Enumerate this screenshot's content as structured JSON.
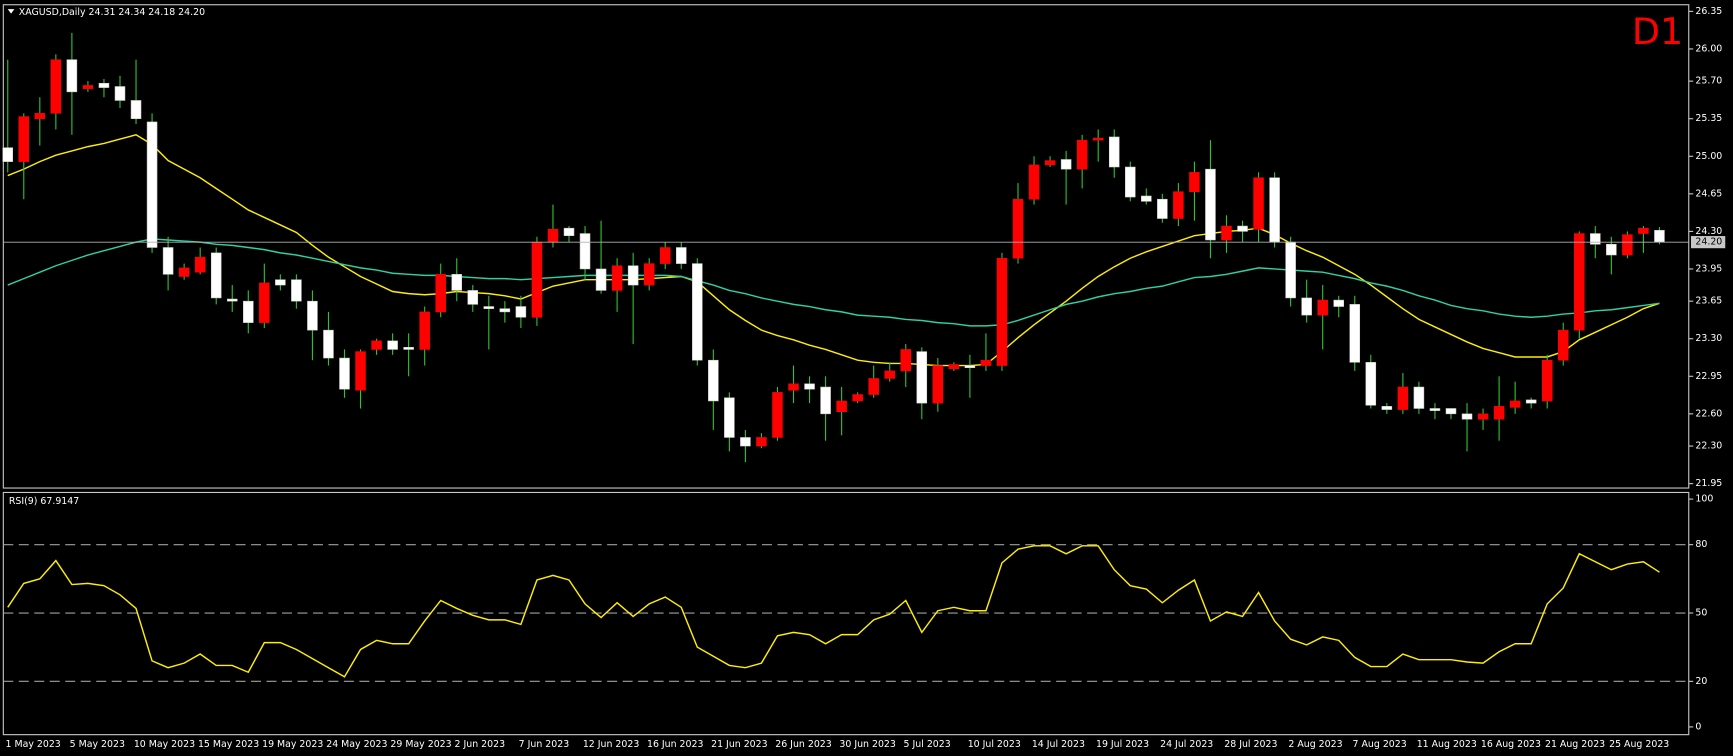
{
  "chart_data": [
    {
      "type": "candlestick",
      "title": "XAGUSD,Daily  24.31 24.34 24.18 24.20",
      "timeframe_label": "D1",
      "up_color": "#ff0000",
      "down_color": "#ffffff",
      "wick_color": "#2ec62e",
      "title_color": "#ffffff",
      "timeframe_color": "#ff0000",
      "ylim": [
        21.95,
        26.35
      ],
      "yticks": [
        26.35,
        {
          "value": 26.0,
          "label": "26.00"
        },
        {
          "value": 25.7,
          "label": "25.70"
        },
        25.35,
        {
          "value": 25.0,
          "label": "25.00"
        },
        24.65,
        {
          "value": 24.3,
          "label": "24.30"
        },
        23.95,
        23.65,
        {
          "value": 23.3,
          "label": "23.30"
        },
        22.95,
        {
          "value": 22.6,
          "label": "22.60"
        },
        {
          "value": 22.3,
          "label": "22.30"
        },
        21.95
      ],
      "current_price": {
        "value": 24.2,
        "label": "24.20"
      },
      "open": [
        25.08,
        24.95,
        25.35,
        25.4,
        25.9,
        25.63,
        25.68,
        25.65,
        25.52,
        25.32,
        24.15,
        23.88,
        23.92,
        24.1,
        23.67,
        23.65,
        23.45,
        23.85,
        23.85,
        23.65,
        23.38,
        23.12,
        22.82,
        23.2,
        23.28,
        23.22,
        23.2,
        23.55,
        23.9,
        23.75,
        23.6,
        23.58,
        23.6,
        23.5,
        24.2,
        24.33,
        24.28,
        23.95,
        23.75,
        23.98,
        23.8,
        24.0,
        24.15,
        24.0,
        23.1,
        22.75,
        22.38,
        22.3,
        22.38,
        22.82,
        22.88,
        22.85,
        22.62,
        22.72,
        22.78,
        22.93,
        23.0,
        23.18,
        22.7,
        23.02,
        23.05,
        23.05,
        23.05,
        24.05,
        24.6,
        24.92,
        24.97,
        24.88,
        25.15,
        25.18,
        24.9,
        24.63,
        24.6,
        24.42,
        24.67,
        24.88,
        24.22,
        24.35,
        24.32,
        24.8,
        24.2,
        23.68,
        23.52,
        23.66,
        23.62,
        23.08,
        22.67,
        22.64,
        22.85,
        22.65,
        22.65,
        22.6,
        22.55,
        22.55,
        22.66,
        22.73,
        22.72,
        23.1,
        23.38,
        24.28,
        24.18,
        24.08,
        24.28,
        24.31
      ],
      "high": [
        25.9,
        25.4,
        25.55,
        25.95,
        26.15,
        25.7,
        25.72,
        25.75,
        25.9,
        25.4,
        24.25,
        24.0,
        24.15,
        24.15,
        23.8,
        23.75,
        24.0,
        23.9,
        23.9,
        23.75,
        23.55,
        23.2,
        23.2,
        23.3,
        23.35,
        23.35,
        23.6,
        24.0,
        24.05,
        23.8,
        23.7,
        23.65,
        23.7,
        24.25,
        24.55,
        24.35,
        24.35,
        24.4,
        24.05,
        24.1,
        24.05,
        24.2,
        24.2,
        24.05,
        23.2,
        22.8,
        22.45,
        22.42,
        22.85,
        23.05,
        22.95,
        22.95,
        22.85,
        22.8,
        23.05,
        23.08,
        23.25,
        23.22,
        23.12,
        23.08,
        23.15,
        23.35,
        24.1,
        24.75,
        25.0,
        25.0,
        25.05,
        25.2,
        25.25,
        25.25,
        24.95,
        24.7,
        24.65,
        24.75,
        24.95,
        25.15,
        24.45,
        24.4,
        24.85,
        24.85,
        24.25,
        23.85,
        23.8,
        23.7,
        23.7,
        23.15,
        22.7,
        22.98,
        22.9,
        22.7,
        22.65,
        22.7,
        22.65,
        22.95,
        22.9,
        22.75,
        23.15,
        23.45,
        24.3,
        24.35,
        24.25,
        24.3,
        24.35,
        24.34
      ],
      "low": [
        24.85,
        24.6,
        25.1,
        25.25,
        25.2,
        25.6,
        25.55,
        25.45,
        25.3,
        24.1,
        23.75,
        23.85,
        23.9,
        23.62,
        23.55,
        23.35,
        23.4,
        23.75,
        23.58,
        23.1,
        23.05,
        22.75,
        22.65,
        23.15,
        23.15,
        22.95,
        23.05,
        23.5,
        23.65,
        23.55,
        23.2,
        23.45,
        23.4,
        23.42,
        24.15,
        24.2,
        23.85,
        23.72,
        23.55,
        23.25,
        23.75,
        23.95,
        23.95,
        23.05,
        22.45,
        22.25,
        22.15,
        22.28,
        22.35,
        22.7,
        22.7,
        22.35,
        22.4,
        22.7,
        22.75,
        22.9,
        22.85,
        22.55,
        22.62,
        23.0,
        22.75,
        23.0,
        23.0,
        24.0,
        24.55,
        24.9,
        24.55,
        24.7,
        24.95,
        24.8,
        24.58,
        24.55,
        24.38,
        24.35,
        24.4,
        24.05,
        24.1,
        24.2,
        24.2,
        24.15,
        23.6,
        23.45,
        23.2,
        23.5,
        23.0,
        22.65,
        22.6,
        22.6,
        22.6,
        22.55,
        22.55,
        22.25,
        22.45,
        22.35,
        22.6,
        22.65,
        22.65,
        23.05,
        23.3,
        24.05,
        23.9,
        24.05,
        24.1,
        24.18
      ],
      "close": [
        24.95,
        25.37,
        25.4,
        25.9,
        25.6,
        25.66,
        25.64,
        25.52,
        25.35,
        24.15,
        23.9,
        23.96,
        24.06,
        23.68,
        23.65,
        23.45,
        23.82,
        23.8,
        23.65,
        23.38,
        23.12,
        22.83,
        23.18,
        23.28,
        23.2,
        23.2,
        23.55,
        23.9,
        23.75,
        23.62,
        23.58,
        23.55,
        23.5,
        24.2,
        24.32,
        24.26,
        23.95,
        23.75,
        23.98,
        23.8,
        24.0,
        24.15,
        24.0,
        23.1,
        22.72,
        22.38,
        22.3,
        22.38,
        22.8,
        22.88,
        22.83,
        22.6,
        22.72,
        22.78,
        22.93,
        23.0,
        23.2,
        22.7,
        23.05,
        23.06,
        23.03,
        23.1,
        24.05,
        24.6,
        24.92,
        24.96,
        24.88,
        25.15,
        25.17,
        24.9,
        24.62,
        24.58,
        24.42,
        24.67,
        24.85,
        24.22,
        24.35,
        24.3,
        24.8,
        24.2,
        23.68,
        23.52,
        23.66,
        23.6,
        23.08,
        22.68,
        22.64,
        22.85,
        22.65,
        22.63,
        22.6,
        22.55,
        22.6,
        22.67,
        22.72,
        22.7,
        23.1,
        23.38,
        24.28,
        24.18,
        24.08,
        24.27,
        24.33,
        24.2
      ],
      "ma_lines": [
        {
          "color": "#ffee00",
          "values": [
            24.82,
            24.88,
            24.95,
            25.01,
            25.05,
            25.09,
            25.12,
            25.16,
            25.2,
            25.11,
            24.96,
            24.88,
            24.8,
            24.7,
            24.6,
            24.5,
            24.43,
            24.36,
            24.29,
            24.17,
            24.06,
            23.97,
            23.88,
            23.81,
            23.74,
            23.72,
            23.71,
            23.72,
            23.74,
            23.73,
            23.72,
            23.7,
            23.67,
            23.73,
            23.79,
            23.82,
            23.85,
            23.85,
            23.85,
            23.85,
            23.86,
            23.87,
            23.88,
            23.83,
            23.7,
            23.57,
            23.47,
            23.38,
            23.33,
            23.29,
            23.24,
            23.2,
            23.15,
            23.1,
            23.08,
            23.07,
            23.07,
            23.06,
            23.05,
            23.05,
            23.05,
            23.06,
            23.18,
            23.31,
            23.43,
            23.54,
            23.65,
            23.77,
            23.88,
            23.97,
            24.05,
            24.11,
            24.16,
            24.21,
            24.26,
            24.28,
            24.3,
            24.31,
            24.33,
            24.27,
            24.19,
            24.12,
            24.06,
            23.98,
            23.9,
            23.8,
            23.69,
            23.58,
            23.48,
            23.41,
            23.34,
            23.27,
            23.21,
            23.17,
            23.13,
            23.13,
            23.13,
            23.18,
            23.29,
            23.36,
            23.43,
            23.5,
            23.58,
            23.63
          ]
        },
        {
          "color": "#30d0a0",
          "values": [
            23.8,
            23.86,
            23.92,
            23.98,
            24.03,
            24.08,
            24.12,
            24.16,
            24.2,
            24.23,
            24.22,
            24.21,
            24.2,
            24.18,
            24.17,
            24.15,
            24.13,
            24.1,
            24.08,
            24.05,
            24.02,
            23.99,
            23.96,
            23.94,
            23.91,
            23.9,
            23.89,
            23.89,
            23.88,
            23.87,
            23.86,
            23.86,
            23.85,
            23.86,
            23.87,
            23.88,
            23.89,
            23.89,
            23.89,
            23.89,
            23.89,
            23.89,
            23.88,
            23.84,
            23.8,
            23.75,
            23.72,
            23.68,
            23.65,
            23.62,
            23.6,
            23.57,
            23.55,
            23.52,
            23.51,
            23.5,
            23.48,
            23.47,
            23.45,
            23.44,
            23.42,
            23.42,
            23.43,
            23.47,
            23.52,
            23.57,
            23.62,
            23.65,
            23.69,
            23.72,
            23.74,
            23.77,
            23.79,
            23.83,
            23.87,
            23.88,
            23.9,
            23.93,
            23.96,
            23.95,
            23.94,
            23.93,
            23.92,
            23.89,
            23.86,
            23.82,
            23.79,
            23.75,
            23.7,
            23.66,
            23.61,
            23.58,
            23.56,
            23.53,
            23.51,
            23.5,
            23.51,
            23.53,
            23.54,
            23.56,
            23.57,
            23.59,
            23.61,
            23.63
          ]
        }
      ]
    },
    {
      "type": "line",
      "title": "RSI(9) 67.9147",
      "color": "#ffee00",
      "level_color": "#a0a0a0",
      "ylim": [
        0,
        100
      ],
      "yticks": [
        100,
        80,
        50,
        20,
        0
      ],
      "categories": [
        "1 May 2023",
        null,
        null,
        null,
        "5 May 2023",
        null,
        null,
        null,
        "10 May 2023",
        null,
        null,
        null,
        "15 May 2023",
        null,
        null,
        null,
        "19 May 2023",
        null,
        null,
        null,
        "24 May 2023",
        null,
        null,
        null,
        "29 May 2023",
        null,
        null,
        null,
        "2 Jun 2023",
        null,
        null,
        null,
        "7 Jun 2023",
        null,
        null,
        null,
        "12 Jun 2023",
        null,
        null,
        null,
        "16 Jun 2023",
        null,
        null,
        null,
        "21 Jun 2023",
        null,
        null,
        null,
        "26 Jun 2023",
        null,
        null,
        null,
        "30 Jun 2023",
        null,
        null,
        null,
        "5 Jul 2023",
        null,
        null,
        null,
        "10 Jul 2023",
        null,
        null,
        null,
        "14 Jul 2023",
        null,
        null,
        null,
        "19 Jul 2023",
        null,
        null,
        null,
        "24 Jul 2023",
        null,
        null,
        null,
        "28 Jul 2023",
        null,
        null,
        null,
        "2 Aug 2023",
        null,
        null,
        null,
        "7 Aug 2023",
        null,
        null,
        null,
        "11 Aug 2023",
        null,
        null,
        null,
        "16 Aug 2023",
        null,
        null,
        null,
        "21 Aug 2023",
        null,
        null,
        null,
        "25 Aug 2023",
        null,
        null,
        null
      ],
      "values": [
        52.5,
        63,
        65,
        73,
        62.5,
        63,
        62,
        58,
        52,
        29,
        26,
        28,
        32,
        27,
        27,
        24,
        37,
        37,
        34,
        30,
        26,
        22,
        34,
        38,
        36.5,
        36.5,
        46.5,
        55.5,
        52,
        49,
        47,
        47,
        45,
        64.5,
        66.5,
        64.5,
        54,
        48,
        54.5,
        48.5,
        54,
        57,
        52.5,
        35,
        31,
        27,
        26,
        28,
        40,
        41.5,
        40.5,
        36.5,
        40.5,
        40.5,
        47,
        49.5,
        55.5,
        41.5,
        51,
        52.5,
        51,
        51,
        72,
        78,
        79.5,
        79.5,
        76,
        79.5,
        79.5,
        69,
        62,
        60.5,
        54.5,
        60,
        64.5,
        46.5,
        50.5,
        48.5,
        59,
        46.5,
        38.5,
        36,
        39.5,
        38,
        30.5,
        26.5,
        26.5,
        32,
        29.5,
        29.5,
        29.5,
        28.5,
        28,
        33,
        36.5,
        36.5,
        54,
        61,
        76,
        72.5,
        69,
        71.5,
        72.5,
        67.9147
      ]
    }
  ]
}
